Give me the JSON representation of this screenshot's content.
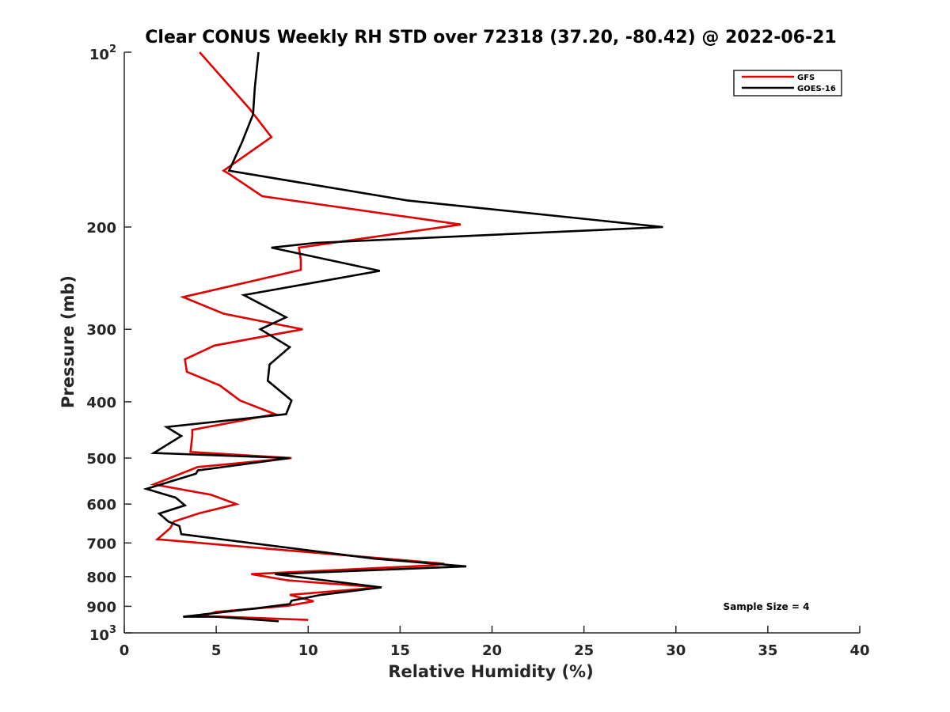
{
  "chart_data": {
    "type": "line",
    "title": "Clear CONUS Weekly RH STD over 72318 (37.20, -80.42) @ 2022-06-21",
    "xlabel": "Relative Humidity (%)",
    "ylabel": "Pressure (mb)",
    "xlim": [
      0,
      40
    ],
    "ylim": [
      100,
      1000
    ],
    "y_scale": "log",
    "y_reversed": true,
    "x_ticks": [
      "0",
      "5",
      "10",
      "15",
      "20",
      "25",
      "30",
      "35",
      "40"
    ],
    "y_ticks": [
      {
        "value": 100,
        "base": "10",
        "exp": "2"
      },
      {
        "value": 200,
        "label": "200"
      },
      {
        "value": 300,
        "label": "300"
      },
      {
        "value": 400,
        "label": "400"
      },
      {
        "value": 500,
        "label": "500"
      },
      {
        "value": 600,
        "label": "600"
      },
      {
        "value": 700,
        "label": "700"
      },
      {
        "value": 800,
        "label": "800"
      },
      {
        "value": 900,
        "label": "900"
      },
      {
        "value": 1000,
        "base": "10",
        "exp": "3"
      }
    ],
    "legend_position": "top-right",
    "grid": false,
    "annotation": "Sample Size = 4",
    "series": [
      {
        "name": "GFS",
        "color": "#e00000",
        "points": [
          [
            4.1,
            100
          ],
          [
            6.8,
            125
          ],
          [
            8.0,
            140
          ],
          [
            5.4,
            160
          ],
          [
            5.7,
            162
          ],
          [
            7.5,
            177
          ],
          [
            18.3,
            198
          ],
          [
            9.5,
            217
          ],
          [
            9.6,
            228
          ],
          [
            9.6,
            237
          ],
          [
            3.2,
            264
          ],
          [
            5.4,
            282
          ],
          [
            9.7,
            300
          ],
          [
            4.9,
            320
          ],
          [
            3.3,
            338
          ],
          [
            3.4,
            355
          ],
          [
            5.2,
            375
          ],
          [
            6.3,
            398
          ],
          [
            8.2,
            420
          ],
          [
            5.2,
            438
          ],
          [
            3.7,
            447
          ],
          [
            3.7,
            458
          ],
          [
            3.6,
            488
          ],
          [
            9.1,
            500
          ],
          [
            4.0,
            518
          ],
          [
            1.6,
            555
          ],
          [
            4.7,
            578
          ],
          [
            6.1,
            600
          ],
          [
            4.1,
            622
          ],
          [
            2.7,
            643
          ],
          [
            2.5,
            660
          ],
          [
            1.8,
            690
          ],
          [
            17.4,
            760
          ],
          [
            16.8,
            765
          ],
          [
            6.9,
            792
          ],
          [
            8.9,
            812
          ],
          [
            13.9,
            835
          ],
          [
            9.0,
            860
          ],
          [
            10.3,
            882
          ],
          [
            8.9,
            898
          ],
          [
            5.0,
            920
          ],
          [
            4.3,
            935
          ],
          [
            10.0,
            950
          ]
        ]
      },
      {
        "name": "GOES-16",
        "color": "#000000",
        "points": [
          [
            7.3,
            100
          ],
          [
            7.1,
            115
          ],
          [
            7.0,
            128
          ],
          [
            6.4,
            143
          ],
          [
            5.7,
            160
          ],
          [
            15.4,
            180
          ],
          [
            29.3,
            200
          ],
          [
            10.4,
            213
          ],
          [
            8.0,
            217
          ],
          [
            13.9,
            238
          ],
          [
            6.5,
            262
          ],
          [
            8.8,
            286
          ],
          [
            7.4,
            300
          ],
          [
            9.0,
            322
          ],
          [
            7.9,
            345
          ],
          [
            7.8,
            368
          ],
          [
            9.1,
            398
          ],
          [
            8.8,
            420
          ],
          [
            2.3,
            442
          ],
          [
            3.1,
            458
          ],
          [
            1.6,
            490
          ],
          [
            9.0,
            500
          ],
          [
            4.0,
            525
          ],
          [
            3.9,
            532
          ],
          [
            1.2,
            565
          ],
          [
            2.8,
            585
          ],
          [
            3.3,
            603
          ],
          [
            1.9,
            623
          ],
          [
            2.4,
            643
          ],
          [
            3.0,
            655
          ],
          [
            3.1,
            676
          ],
          [
            13.6,
            745
          ],
          [
            18.6,
            768
          ],
          [
            8.2,
            792
          ],
          [
            14.0,
            835
          ],
          [
            10.7,
            860
          ],
          [
            9.1,
            880
          ],
          [
            9.0,
            892
          ],
          [
            7.1,
            908
          ],
          [
            3.2,
            938
          ],
          [
            5.0,
            938
          ],
          [
            8.4,
            955
          ]
        ]
      }
    ]
  }
}
